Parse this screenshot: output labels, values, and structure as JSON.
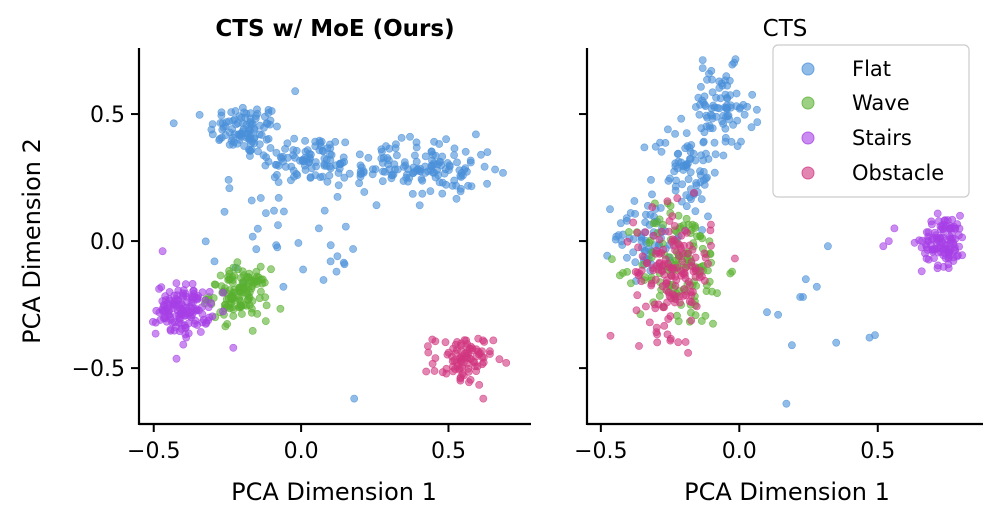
{
  "chart_data": [
    {
      "type": "scatter",
      "title": "CTS w/ MoE (Ours)",
      "title_weight": "bold",
      "xlabel": "PCA Dimension 1",
      "ylabel": "PCA Dimension 2",
      "xlim": [
        -0.55,
        0.78
      ],
      "ylim": [
        -0.72,
        0.76
      ],
      "xticks": [
        -0.5,
        0.0,
        0.5
      ],
      "yticks": [
        -0.5,
        0.0,
        0.5
      ],
      "xtick_labels": [
        "−0.5",
        "0.0",
        "0.5"
      ],
      "ytick_labels": [
        "−0.5",
        "0.0",
        "0.5"
      ],
      "y_tick_labels_shown": true,
      "clusters": [
        {
          "series": "Flat",
          "center": [
            -0.19,
            0.44
          ],
          "spread": [
            0.06,
            0.05
          ],
          "count": 100
        },
        {
          "series": "Flat",
          "center": [
            0.02,
            0.32
          ],
          "spread": [
            0.09,
            0.05
          ],
          "count": 85
        },
        {
          "series": "Flat",
          "center": [
            0.28,
            0.29
          ],
          "spread": [
            0.1,
            0.05
          ],
          "count": 60
        },
        {
          "series": "Flat",
          "center": [
            0.47,
            0.28
          ],
          "spread": [
            0.09,
            0.06
          ],
          "count": 85
        },
        {
          "series": "Flat",
          "center": [
            -0.05,
            0.05
          ],
          "spread": [
            0.13,
            0.11
          ],
          "count": 30
        },
        {
          "series": "Wave",
          "center": [
            -0.21,
            -0.21
          ],
          "spread": [
            0.05,
            0.05
          ],
          "count": 130
        },
        {
          "series": "Stairs",
          "center": [
            -0.4,
            -0.27
          ],
          "spread": [
            0.045,
            0.05
          ],
          "count": 140
        },
        {
          "series": "Obstacle",
          "center": [
            0.55,
            -0.47
          ],
          "spread": [
            0.05,
            0.05
          ],
          "count": 90
        }
      ],
      "outliers": [
        {
          "series": "Flat",
          "points": [
            [
              0.18,
              -0.62
            ],
            [
              -0.06,
              -0.18
            ],
            [
              0.12,
              -0.12
            ],
            [
              0.1,
              -0.08
            ],
            [
              -0.02,
              0.59
            ],
            [
              0.08,
              0.12
            ]
          ]
        },
        {
          "series": "Stairs",
          "points": [
            [
              -0.47,
              -0.04
            ],
            [
              -0.23,
              -0.42
            ],
            [
              -0.31,
              -0.2
            ]
          ]
        }
      ]
    },
    {
      "type": "scatter",
      "title": "CTS",
      "title_weight": "normal",
      "xlabel": "PCA Dimension 1",
      "ylabel": "",
      "xlim": [
        -0.55,
        0.88
      ],
      "ylim": [
        -0.72,
        0.76
      ],
      "xticks": [
        -0.5,
        0.0,
        0.5
      ],
      "yticks": [
        -0.5,
        0.0,
        0.5
      ],
      "xtick_labels": [
        "−0.5",
        "0.0",
        "0.5"
      ],
      "ytick_labels": [
        "",
        "",
        ""
      ],
      "y_tick_labels_shown": false,
      "clusters": [
        {
          "series": "Flat",
          "center": [
            -0.07,
            0.52
          ],
          "spread": [
            0.06,
            0.08
          ],
          "count": 90
        },
        {
          "series": "Flat",
          "center": [
            -0.19,
            0.28
          ],
          "spread": [
            0.06,
            0.09
          ],
          "count": 70
        },
        {
          "series": "Flat",
          "center": [
            -0.33,
            0.02
          ],
          "spread": [
            0.06,
            0.08
          ],
          "count": 70
        },
        {
          "series": "Wave",
          "center": [
            -0.21,
            -0.1
          ],
          "spread": [
            0.08,
            0.12
          ],
          "count": 130
        },
        {
          "series": "Obstacle",
          "center": [
            -0.24,
            -0.12
          ],
          "spread": [
            0.07,
            0.12
          ],
          "count": 150
        },
        {
          "series": "Stairs",
          "center": [
            0.74,
            0.0
          ],
          "spread": [
            0.04,
            0.05
          ],
          "count": 110
        }
      ],
      "outliers": [
        {
          "series": "Flat",
          "points": [
            [
              0.17,
              -0.64
            ],
            [
              0.19,
              -0.41
            ],
            [
              0.23,
              -0.22
            ],
            [
              0.24,
              -0.15
            ],
            [
              0.28,
              -0.18
            ],
            [
              0.32,
              -0.02
            ],
            [
              0.35,
              -0.4
            ],
            [
              0.47,
              -0.38
            ],
            [
              0.49,
              -0.37
            ],
            [
              0.14,
              -0.29
            ],
            [
              0.1,
              -0.28
            ],
            [
              0.22,
              -0.22
            ]
          ]
        },
        {
          "series": "Stairs",
          "points": [
            [
              0.52,
              -0.02
            ],
            [
              0.54,
              0.0
            ],
            [
              0.56,
              0.05
            ]
          ]
        }
      ]
    }
  ],
  "legend": {
    "placement": "top-right",
    "entries": [
      {
        "label": "Flat",
        "color": "#4a90d9"
      },
      {
        "label": "Wave",
        "color": "#5ab030"
      },
      {
        "label": "Stairs",
        "color": "#a640e6"
      },
      {
        "label": "Obstacle",
        "color": "#d0357f"
      }
    ]
  },
  "colors": {
    "Flat": "#4a90d9",
    "Wave": "#5ab030",
    "Stairs": "#a640e6",
    "Obstacle": "#d0357f"
  },
  "style": {
    "point_opacity": 0.6
  }
}
